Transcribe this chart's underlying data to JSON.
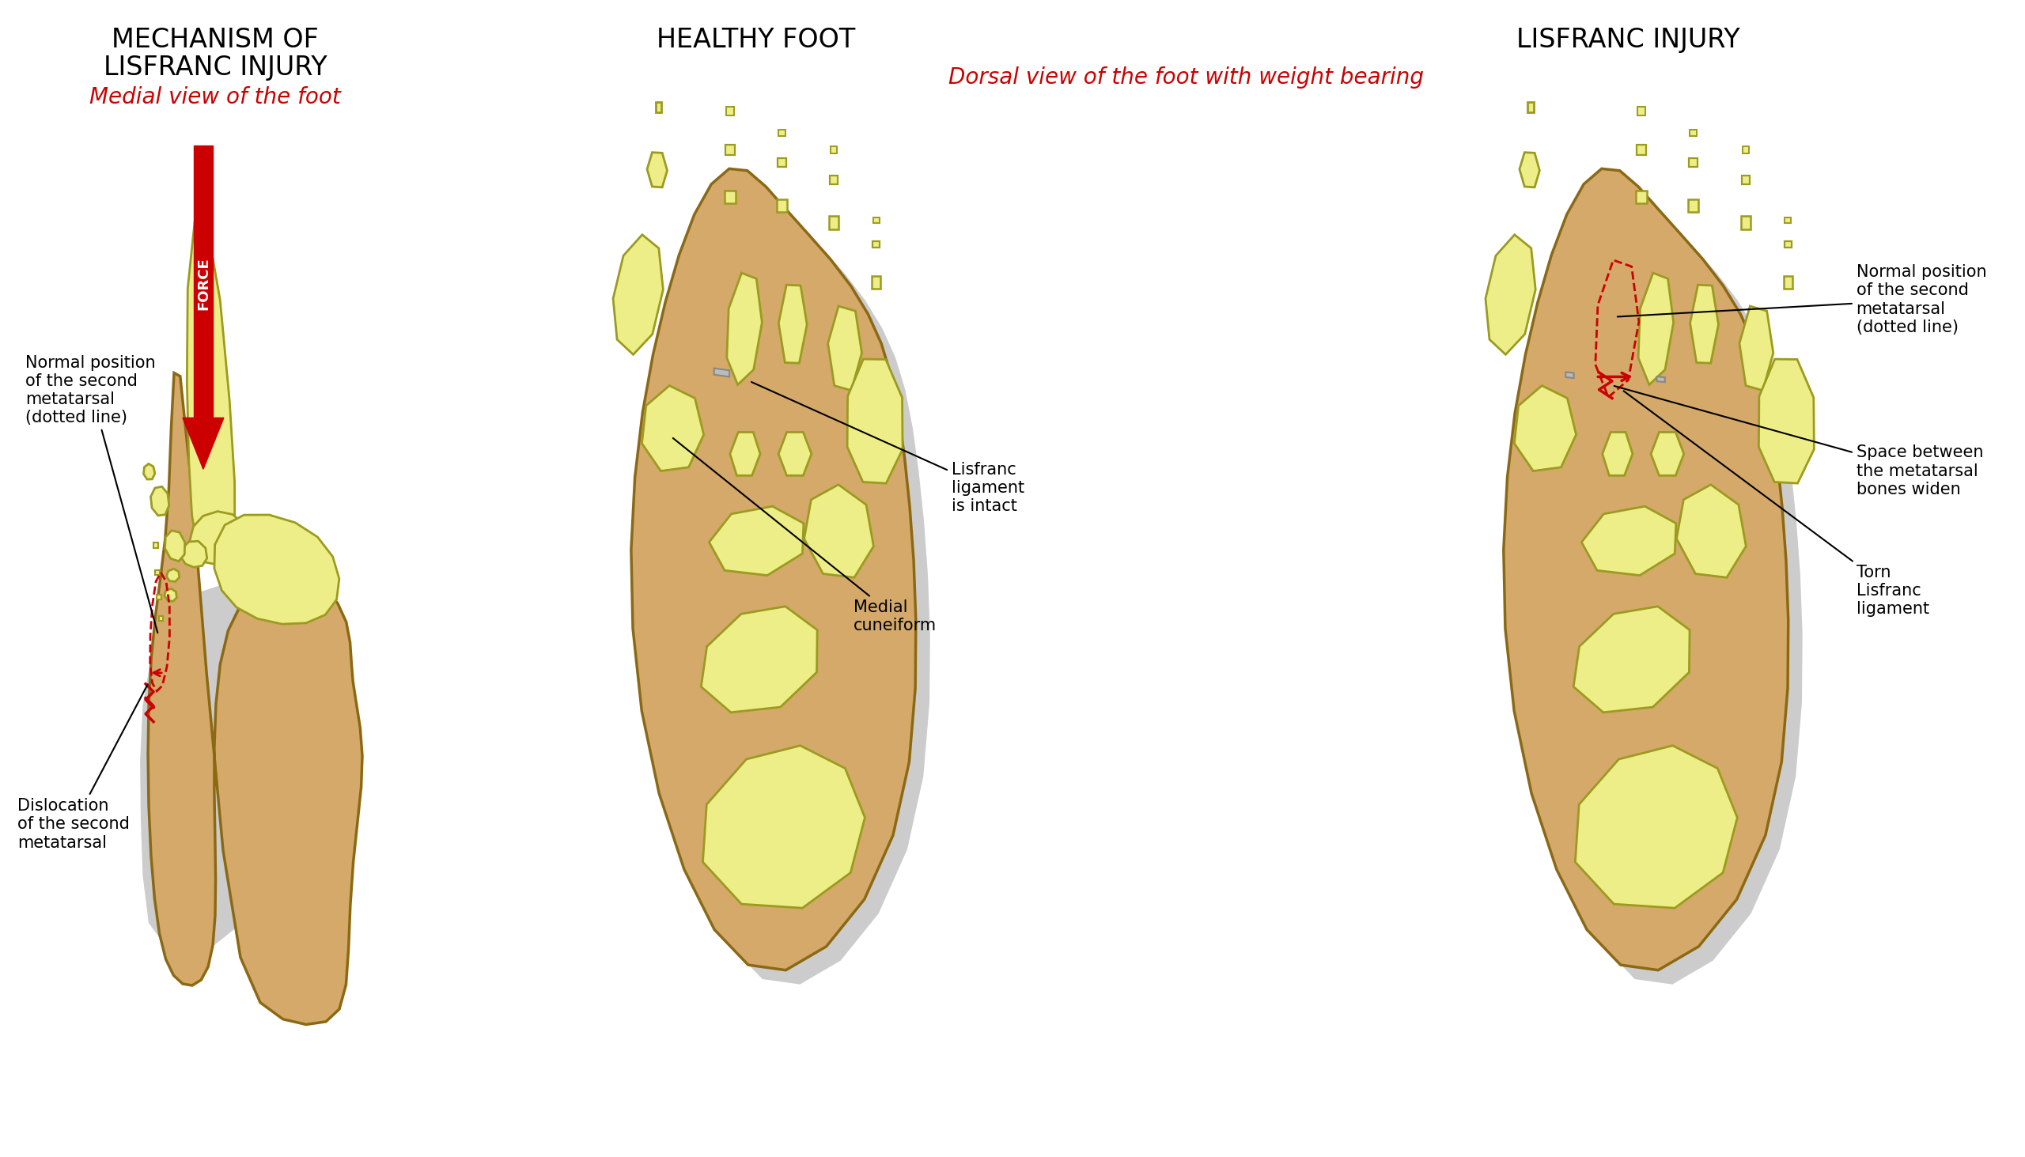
{
  "bg_color": "#ffffff",
  "skin_color": "#D4A96A",
  "skin_edge": "#8B6914",
  "bone_fill": "#EEEE88",
  "bone_outline": "#9B9B20",
  "shadow_color": "#BBBBBB",
  "red_color": "#CC0000",
  "gray_lig": "#BBBBBB",
  "gray_lig_edge": "#888888",
  "title1_line1": "MECHANISM OF",
  "title1_line2": "LISFRANC INJURY",
  "title2": "HEALTHY FOOT",
  "title3": "LISFRANC INJURY",
  "subtitle1": "Medial view of the foot",
  "subtitle2": "Dorsal view of the foot with weight bearing",
  "label_normal_pos": "Normal position\nof the second\nmetatarsal\n(dotted line)",
  "label_dislocation": "Dislocation\nof the second\nmetatarsal",
  "label_lisfranc_intact": "Lisfranc\nligament\nis intact",
  "label_medial_cuneiform": "Medial\ncuneiform",
  "label_normal_pos2": "Normal position\nof the second\nmetatarsal\n(dotted line)",
  "label_space_widen": "Space between\nthe metatarsal\nbones widen",
  "label_torn": "Torn\nLisfranc\nligament",
  "title_fontsize": 24,
  "subtitle_fontsize": 20,
  "label_fontsize": 15
}
